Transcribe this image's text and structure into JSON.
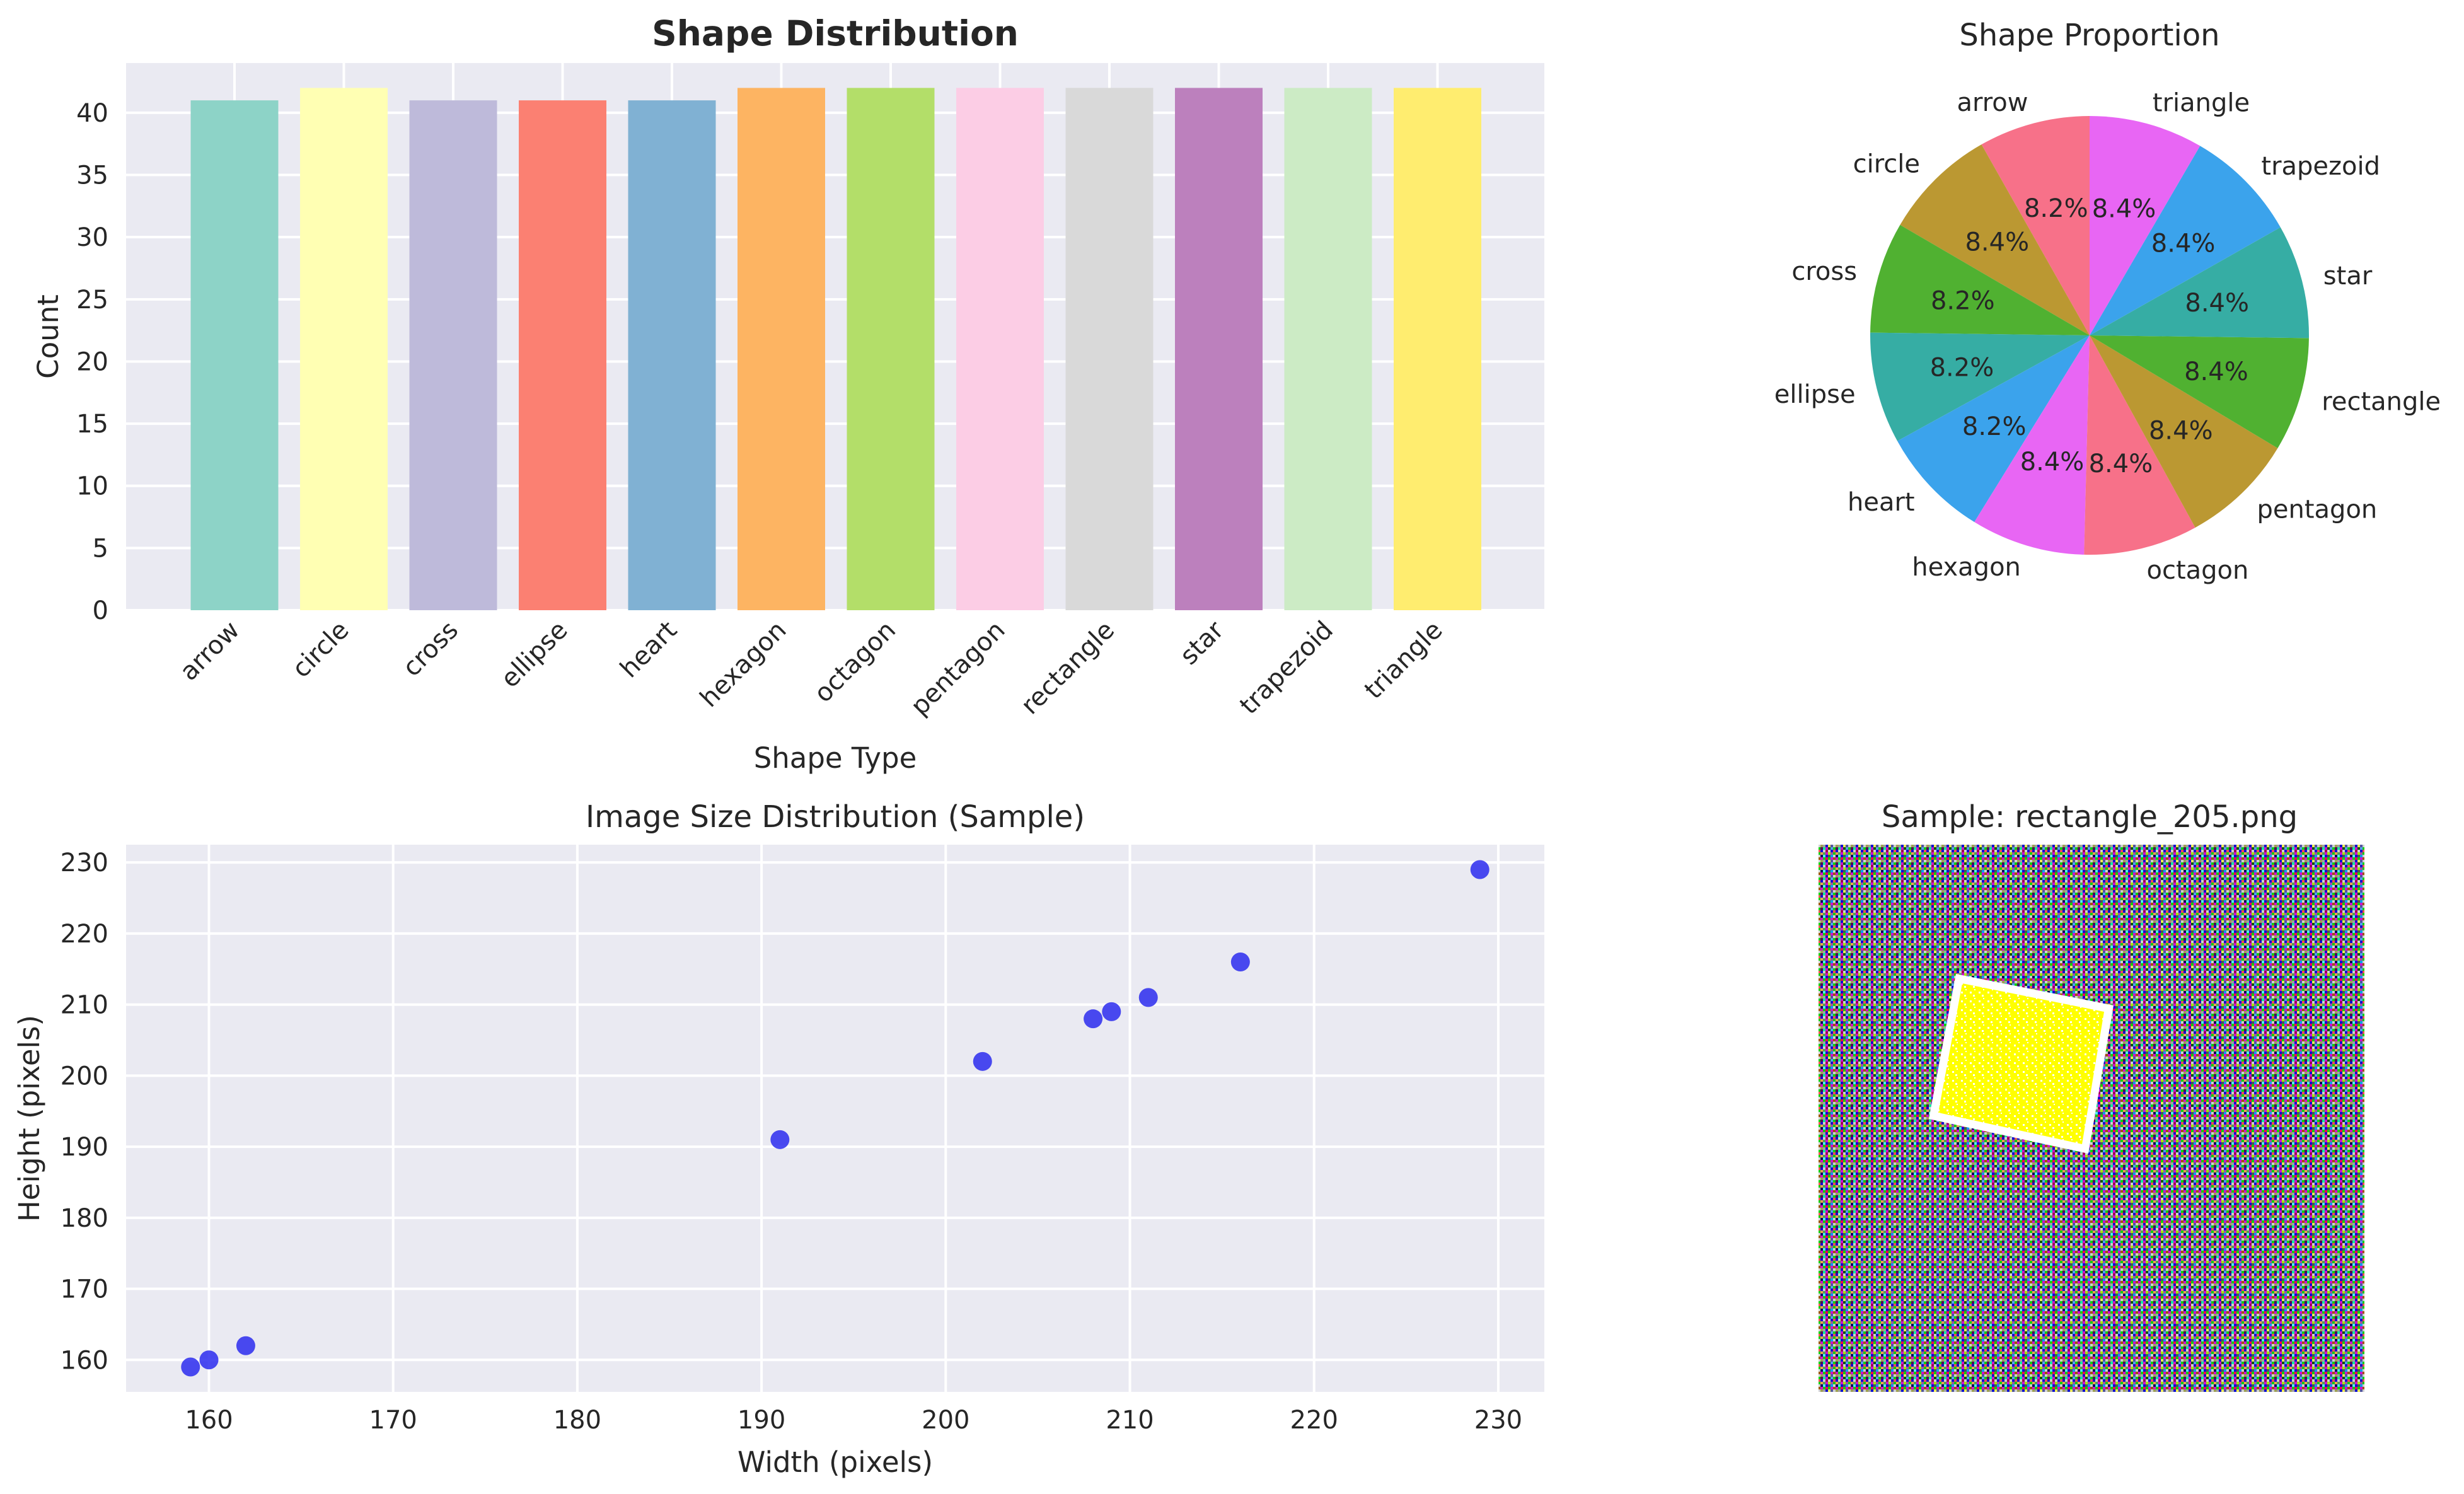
{
  "chart_data": [
    {
      "type": "bar",
      "title": "Shape Distribution",
      "xlabel": "Shape Type",
      "ylabel": "Count",
      "categories": [
        "arrow",
        "circle",
        "cross",
        "ellipse",
        "heart",
        "hexagon",
        "octagon",
        "pentagon",
        "rectangle",
        "star",
        "trapezoid",
        "triangle"
      ],
      "values": [
        41,
        42,
        41,
        41,
        41,
        42,
        42,
        42,
        42,
        42,
        42,
        42
      ],
      "colors": [
        "#8dd3c7",
        "#ffffb3",
        "#bebada",
        "#fb8072",
        "#80b1d3",
        "#fdb462",
        "#b3de69",
        "#fccde5",
        "#d9d9d9",
        "#bc80bd",
        "#ccebc5",
        "#ffed6f"
      ],
      "ylim": [
        0,
        44
      ],
      "yticks": [
        0,
        5,
        10,
        15,
        20,
        25,
        30,
        35,
        40
      ],
      "grid": true
    },
    {
      "type": "pie",
      "title": "Shape Proportion",
      "labels": [
        "arrow",
        "circle",
        "cross",
        "ellipse",
        "heart",
        "hexagon",
        "octagon",
        "pentagon",
        "rectangle",
        "star",
        "trapezoid",
        "triangle"
      ],
      "values": [
        41,
        42,
        41,
        41,
        41,
        42,
        42,
        42,
        42,
        42,
        42,
        42
      ],
      "pct_labels": [
        "8.2%",
        "8.4%",
        "8.2%",
        "8.2%",
        "8.2%",
        "8.4%",
        "8.4%",
        "8.4%",
        "8.4%",
        "8.4%",
        "8.4%",
        "8.4%"
      ],
      "colors": [
        "#f77189",
        "#bb9832",
        "#50b131",
        "#36ada4",
        "#3ba3ec",
        "#e866f4",
        "#f77189",
        "#bb9832",
        "#50b131",
        "#36ada4",
        "#3ba3ec",
        "#e866f4"
      ],
      "start_angle_deg": 90,
      "direction": "counterclockwise"
    },
    {
      "type": "scatter",
      "title": "Image Size Distribution (Sample)",
      "xlabel": "Width (pixels)",
      "ylabel": "Height (pixels)",
      "x": [
        159,
        160,
        162,
        191,
        202,
        208,
        209,
        211,
        216,
        229
      ],
      "y": [
        159,
        160,
        162,
        191,
        202,
        208,
        209,
        211,
        216,
        229
      ],
      "color": "#2b2bef",
      "xlim": [
        155.5,
        232.5
      ],
      "ylim": [
        155.5,
        232.5
      ],
      "xticks": [
        160,
        170,
        180,
        190,
        200,
        210,
        220,
        230
      ],
      "yticks": [
        160,
        170,
        180,
        190,
        200,
        210,
        220,
        230
      ],
      "grid": true
    }
  ],
  "sample_image": {
    "title": "Sample: rectangle_205.png",
    "shape_fill": "#ffff00",
    "shape_edge": "#ffffff"
  }
}
